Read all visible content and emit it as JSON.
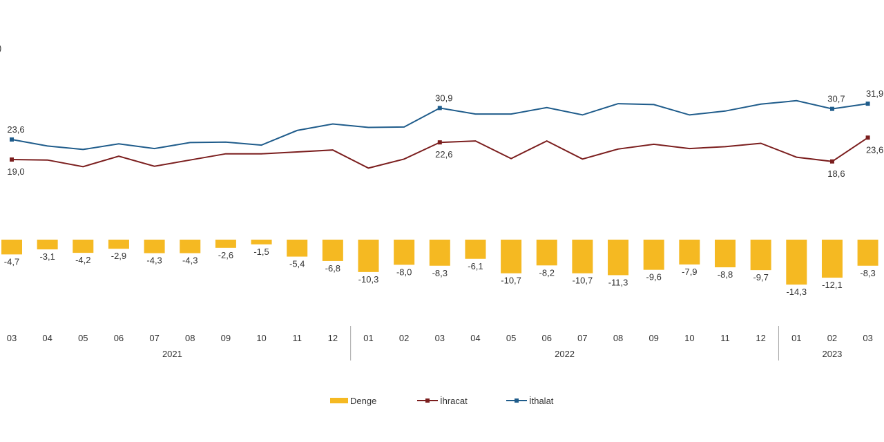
{
  "chart_data": {
    "type": "bar",
    "title": "",
    "y_unit_fragment": ")",
    "categories": [
      "03",
      "04",
      "05",
      "06",
      "07",
      "08",
      "09",
      "10",
      "11",
      "12",
      "01",
      "02",
      "03",
      "04",
      "05",
      "06",
      "07",
      "08",
      "09",
      "10",
      "11",
      "12",
      "01",
      "02",
      "03"
    ],
    "year_groups": [
      {
        "year": "2021",
        "start": 0,
        "end": 9
      },
      {
        "year": "2022",
        "start": 10,
        "end": 21
      },
      {
        "year": "2023",
        "start": 22,
        "end": 24
      }
    ],
    "series": [
      {
        "name": "Denge",
        "type": "bar",
        "color": "#F5B922",
        "values": [
          -4.7,
          -3.1,
          -4.2,
          -2.9,
          -4.3,
          -4.3,
          -2.6,
          -1.5,
          -5.4,
          -6.8,
          -10.3,
          -8.0,
          -8.3,
          -6.1,
          -10.7,
          -8.2,
          -10.7,
          -11.3,
          -9.6,
          -7.9,
          -8.8,
          -9.7,
          -14.3,
          -12.1,
          -8.3
        ],
        "labels": [
          "-4,7",
          "-3,1",
          "-4,2",
          "-2,9",
          "-4,3",
          "-4,3",
          "-2,6",
          "-1,5",
          "-5,4",
          "-6,8",
          "-10,3",
          "-8,0",
          "-8,3",
          "-6,1",
          "-10,7",
          "-8,2",
          "-10,7",
          "-11,3",
          "-9,6",
          "-7,9",
          "-8,8",
          "-9,7",
          "-14,3",
          "-12,1",
          "-8,3"
        ]
      },
      {
        "name": "İhracat",
        "type": "line",
        "color": "#7B1E1E",
        "values": [
          19.0,
          18.9,
          17.5,
          19.7,
          17.6,
          18.9,
          20.2,
          20.2,
          20.6,
          21.0,
          17.2,
          19.1,
          22.6,
          22.9,
          19.2,
          22.9,
          19.1,
          21.2,
          22.2,
          21.3,
          21.7,
          22.4,
          19.5,
          18.6,
          23.6
        ],
        "point_labels": [
          {
            "index": 0,
            "text": "19,0"
          },
          {
            "index": 12,
            "text": "22,6"
          },
          {
            "index": 23,
            "text": "18,6"
          },
          {
            "index": 24,
            "text": "23,6"
          }
        ]
      },
      {
        "name": "İthalat",
        "type": "line",
        "color": "#1F5C8B",
        "values": [
          23.6,
          22.1,
          21.3,
          22.6,
          21.5,
          22.9,
          23.0,
          22.3,
          25.7,
          27.2,
          26.4,
          26.5,
          30.9,
          29.5,
          29.5,
          31.0,
          29.3,
          31.9,
          31.7,
          29.3,
          30.2,
          31.8,
          32.6,
          30.7,
          31.9
        ],
        "point_labels": [
          {
            "index": 0,
            "text": "23,6"
          },
          {
            "index": 12,
            "text": "30,9"
          },
          {
            "index": 23,
            "text": "30,7"
          },
          {
            "index": 24,
            "text": "31,9"
          }
        ]
      }
    ],
    "legend_position": "bottom-center",
    "grid": false
  }
}
